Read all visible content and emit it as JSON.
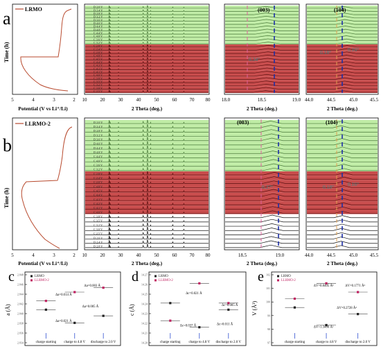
{
  "figure": {
    "panel_letters": [
      "a",
      "b",
      "c",
      "d",
      "e"
    ],
    "colors": {
      "green": "#b9ea9c",
      "red": "#c23a3a",
      "black": "#111111",
      "bg": "#ffffff",
      "curve": "#b84a2e",
      "dash_blue": "#1d2fa8",
      "dash_pink": "#e0609c",
      "dash_orange": "#e0a050",
      "teal_text": "#3b8a8a"
    }
  },
  "chart_data": [
    {
      "id": "a-voltage",
      "type": "line",
      "legend": "LRMO",
      "ylabel": "Time (h)",
      "xlabel": "Potential (V vs Li⁺/Li)",
      "xticks": [
        "5",
        "4",
        "3",
        "2"
      ],
      "xlim": [
        5,
        2
      ]
    },
    {
      "id": "a-xrd-full",
      "type": "line",
      "xlabel": "2 Theta (deg.)",
      "xticks": [
        "10",
        "20",
        "30",
        "40",
        "50",
        "60",
        "70",
        "80"
      ],
      "traces": [
        "D 2.0 V",
        "D 2.4 V",
        "D 2.8 V",
        "D 3.2 V",
        "D 3.6 V",
        "D 4.0 V",
        "D 4.4 V",
        "D 4.8 V",
        "C 4.4 V",
        "C 4.0 V",
        "C 3.6 V",
        "C 3.2 V",
        "C 2.8 V",
        "C 2.4 V",
        "C 2.0 V",
        "C 4.8 V",
        "C 4.5 V",
        "C 4.4 V",
        "C 4.3 V",
        "C 4.2 V",
        "C 4.1 V",
        "C 4.0 V",
        "C 3.8 V",
        "C 3.5 V",
        "C 3.2 V",
        "C 3.0 V",
        "C 2.5 V"
      ]
    },
    {
      "id": "a-xrd-003",
      "type": "line",
      "peak": "(003)",
      "shift": "0.34°",
      "xlabel": "2 Theta (deg.)",
      "xticks": [
        "18.0",
        "18.5",
        "19.0"
      ]
    },
    {
      "id": "a-xrd-104",
      "type": "line",
      "peak": "(104)",
      "shift_left": "0.18°",
      "shift_right": "0.16°",
      "xlabel": "2 Theta (deg.)",
      "xticks": [
        "44.0",
        "44.5",
        "45.0",
        "45.5"
      ]
    },
    {
      "id": "b-voltage",
      "type": "line",
      "legend": "LLRMO-2",
      "ylabel": "Time (h)",
      "xlabel": "Potential (V vs Li⁺/Li)",
      "xticks": [
        "5",
        "4",
        "3",
        "2"
      ]
    },
    {
      "id": "b-xrd-full",
      "type": "line",
      "xlabel": "2 Theta (deg.)",
      "xticks": [
        "10",
        "20",
        "30",
        "40",
        "50",
        "60",
        "70",
        "80"
      ],
      "traces": [
        "D 2.0 V",
        "D 2.4 V",
        "D 2.8 V",
        "D 3.2 V",
        "D 3.6 V",
        "D 4.0 V",
        "D 4.4 V",
        "D 4.8 V",
        "C 4.4 V",
        "C 4.0 V",
        "C 3.6 V",
        "C 3.2 V",
        "C 2.8 V",
        "C 2.4 V",
        "C 2.0 V",
        "C 4.8 V",
        "C 4.5 V",
        "C 4.4 V",
        "C 4.3 V",
        "C 4.2 V",
        "C 4.1 V",
        "C 4.0 V",
        "C 3.8 V",
        "C 3.5 V",
        "C 3.2 V",
        "C 3.0 V",
        "C 2.5 V"
      ]
    },
    {
      "id": "b-xrd-003",
      "type": "line",
      "peak": "(003)",
      "shift": "0.27°",
      "xlabel": "2 Theta (deg.)",
      "xticks": [
        "18.5",
        "19.0"
      ]
    },
    {
      "id": "b-xrd-104",
      "type": "line",
      "peak": "(104)",
      "shift_left": "0.18°",
      "shift_right": "0.16°",
      "xlabel": "2 Theta (deg.)",
      "xticks": [
        "44.0",
        "44.5",
        "45.0",
        "45.5"
      ]
    },
    {
      "id": "c",
      "type": "scatter",
      "ylabel": "a (Å)",
      "yticks": [
        "2.848",
        "2.846",
        "2.844",
        "2.842",
        "2.840",
        "2.838",
        "2.836",
        "2.834"
      ],
      "categories": [
        "charge starting",
        "charge to 4.8 V",
        "discharge to 2.0 V"
      ],
      "series": [
        {
          "name": "LRMO",
          "values": [
            2.8435,
            2.842,
            2.8428
          ]
        },
        {
          "name": "LLRMO-2",
          "values": [
            2.8445,
            2.8455,
            2.846
          ]
        }
      ],
      "annotations": [
        "Δa=0.003 Å",
        "Δa=0.014 Å",
        "Δa=0.005 Å",
        "Δa=0.021 Å"
      ]
    },
    {
      "id": "d",
      "type": "scatter",
      "ylabel": "c (Å)",
      "yticks": [
        "14.27",
        "14.26",
        "14.25",
        "14.24",
        "14.23",
        "14.22",
        "14.21",
        "14.20"
      ],
      "categories": [
        "charge starting",
        "charge to 4.8 V",
        "discharge to 2.0 V"
      ],
      "series": [
        {
          "name": "LRMO",
          "values": [
            14.222,
            14.211,
            14.219
          ]
        },
        {
          "name": "LLRMO-2",
          "values": [
            14.214,
            14.231,
            14.222
          ]
        }
      ],
      "annotations": [
        "Δc=0.021 Å",
        "Δc=0.005 Å",
        "Δc=0.037 Å",
        "Δc=0.011 Å"
      ]
    },
    {
      "id": "e",
      "type": "scatter",
      "ylabel": "V (Å³)",
      "yticks": [
        "102",
        "101",
        "100",
        "99",
        "98",
        "97"
      ],
      "categories": [
        "charge starting",
        "charge to 4.8 V",
        "discharge to 2.0 V"
      ],
      "series": [
        {
          "name": "LRMO",
          "values": [
            99.9,
            99.1,
            99.6
          ]
        },
        {
          "name": "LLRMO-2",
          "values": [
            100.3,
            101.0,
            100.6
          ]
        }
      ],
      "annotations": [
        "ΔV=0.8405 Å³",
        "ΔV=0.1771 Å³",
        "ΔV=0.2728 Å³",
        "ΔV=1.3480 Å³"
      ]
    }
  ]
}
